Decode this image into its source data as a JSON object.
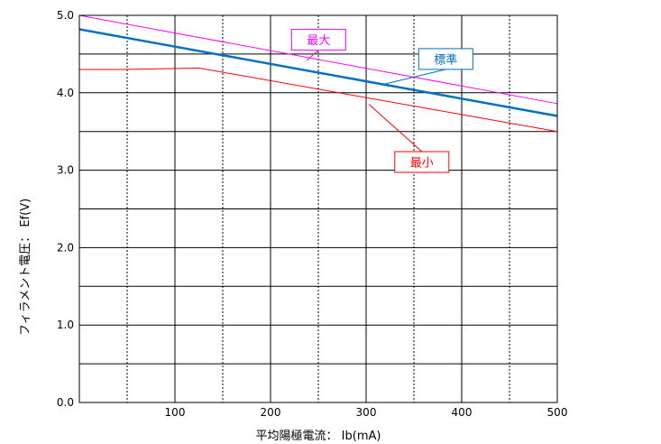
{
  "chart_data": {
    "type": "line",
    "xlabel": "平均陽極電流： Ib(mA)",
    "ylabel": "フィラメント電圧： Ef(V)",
    "xlim": [
      0,
      500
    ],
    "ylim": [
      0,
      5.0
    ],
    "x_ticks": [
      {
        "value": 100,
        "label": "100"
      },
      {
        "value": 200,
        "label": "200"
      },
      {
        "value": 300,
        "label": "300"
      },
      {
        "value": 400,
        "label": "400"
      },
      {
        "value": 500,
        "label": "500"
      }
    ],
    "y_ticks": [
      {
        "value": 0,
        "label": "0.0"
      },
      {
        "value": 1,
        "label": "1.0"
      },
      {
        "value": 2,
        "label": "2.0"
      },
      {
        "value": 3,
        "label": "3.0"
      },
      {
        "value": 4,
        "label": "4.0"
      },
      {
        "value": 5,
        "label": "5.0"
      }
    ],
    "x_dotted_gridlines": [
      50,
      150,
      250,
      350,
      450
    ],
    "y_minor_gridlines": [
      0.5,
      1.5,
      2.5,
      3.5,
      4.5
    ],
    "grid": true,
    "series": [
      {
        "name": "最大",
        "color": "#ff00ff",
        "width": 1,
        "points": [
          [
            0,
            5.0
          ],
          [
            500,
            3.86
          ]
        ]
      },
      {
        "name": "標準",
        "color": "#0070c0",
        "width": 2.5,
        "points": [
          [
            0,
            4.82
          ],
          [
            500,
            3.7
          ]
        ]
      },
      {
        "name": "最小",
        "color": "#ff0000",
        "width": 1,
        "points": [
          [
            0,
            4.3
          ],
          [
            45,
            4.3
          ],
          [
            125,
            4.32
          ],
          [
            500,
            3.5
          ]
        ]
      }
    ],
    "annotations": [
      {
        "text": "最大",
        "color": "#ff00ff",
        "box_xy": [
          222,
          4.82
        ],
        "target": [
          238,
          4.42
        ]
      },
      {
        "text": "標準",
        "color": "#0070c0",
        "box_xy": [
          355,
          4.57
        ],
        "target": [
          315,
          4.1
        ]
      },
      {
        "text": "最小",
        "color": "#ff0000",
        "box_xy": [
          330,
          3.24
        ],
        "target": [
          303,
          3.85
        ]
      }
    ]
  }
}
